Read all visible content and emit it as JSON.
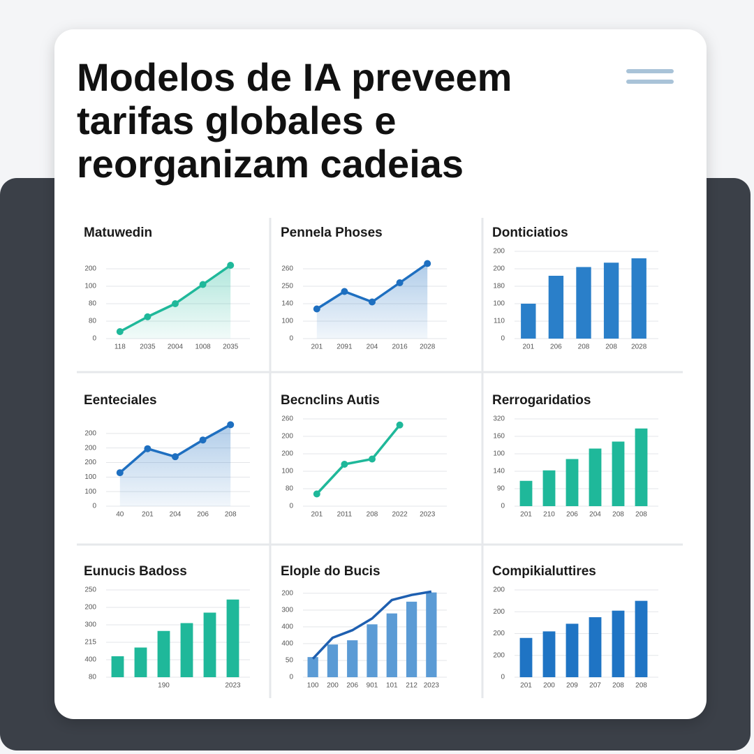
{
  "header": {
    "title": "Modelos de IA preveem tarifas globales e reorganizam cadeias"
  },
  "chart_data": [
    {
      "type": "line",
      "title": "Matuwedin",
      "area": true,
      "color": "#1fb89a",
      "categories": [
        "118",
        "2035",
        "2004",
        "1008",
        "2035"
      ],
      "values": [
        0.4,
        1.25,
        2.0,
        3.1,
        4.2
      ],
      "ylim": [
        0,
        5
      ],
      "yticks": [
        {
          "value": 0,
          "label": "0"
        },
        {
          "value": 1,
          "label": "80"
        },
        {
          "value": 2,
          "label": "80"
        },
        {
          "value": 3,
          "label": "100"
        },
        {
          "value": 4,
          "label": "200"
        }
      ]
    },
    {
      "type": "line",
      "title": "Pennela Phoses",
      "area": true,
      "color": "#1e6fc0",
      "categories": [
        "201",
        "2091",
        "204",
        "2016",
        "2028"
      ],
      "values": [
        1.7,
        2.7,
        2.1,
        3.2,
        4.3
      ],
      "ylim": [
        0,
        5
      ],
      "yticks": [
        {
          "value": 0,
          "label": "0"
        },
        {
          "value": 1,
          "label": "100"
        },
        {
          "value": 2,
          "label": "140"
        },
        {
          "value": 3,
          "label": "250"
        },
        {
          "value": 4,
          "label": "260"
        }
      ]
    },
    {
      "type": "bar",
      "title": "Donticiatios",
      "color": "#2a7fc9",
      "categories": [
        "201",
        "206",
        "208",
        "208",
        "2028"
      ],
      "values": [
        2.0,
        3.6,
        4.1,
        4.35,
        4.6
      ],
      "ylim": [
        0,
        5
      ],
      "yticks": [
        {
          "value": 0,
          "label": "0"
        },
        {
          "value": 1,
          "label": "110"
        },
        {
          "value": 2,
          "label": "100"
        },
        {
          "value": 3,
          "label": "180"
        },
        {
          "value": 4,
          "label": "200"
        },
        {
          "value": 5,
          "label": "200"
        }
      ]
    },
    {
      "type": "line",
      "title": "Eenteciales",
      "area": true,
      "color": "#1e6fc0",
      "categories": [
        "40",
        "201",
        "204",
        "206",
        "208"
      ],
      "values": [
        2.3,
        3.95,
        3.4,
        4.55,
        5.6
      ],
      "ylim": [
        0,
        6
      ],
      "yticks": [
        {
          "value": 0,
          "label": "0"
        },
        {
          "value": 1,
          "label": "100"
        },
        {
          "value": 2,
          "label": "100"
        },
        {
          "value": 3,
          "label": "200"
        },
        {
          "value": 4,
          "label": "200"
        },
        {
          "value": 5,
          "label": "200"
        }
      ]
    },
    {
      "type": "line",
      "title": "Becnclins Autis",
      "area": false,
      "color": "#1fb89a",
      "categories": [
        "201",
        "2011",
        "208",
        "2022",
        "2023"
      ],
      "values": [
        0.7,
        2.4,
        2.7,
        4.65,
        null
      ],
      "ylim": [
        0,
        5
      ],
      "yticks": [
        {
          "value": 0,
          "label": "0"
        },
        {
          "value": 1,
          "label": "80"
        },
        {
          "value": 2,
          "label": "100"
        },
        {
          "value": 3,
          "label": "200"
        },
        {
          "value": 4,
          "label": "200"
        },
        {
          "value": 5,
          "label": "260"
        }
      ]
    },
    {
      "type": "bar",
      "title": "Rerrogaridatios",
      "color": "#1fb89a",
      "categories": [
        "201",
        "210",
        "206",
        "204",
        "208",
        "208"
      ],
      "values": [
        1.45,
        2.05,
        2.7,
        3.3,
        3.7,
        4.45
      ],
      "ylim": [
        0,
        5
      ],
      "yticks": [
        {
          "value": 0,
          "label": "0"
        },
        {
          "value": 1,
          "label": "90"
        },
        {
          "value": 2,
          "label": "140"
        },
        {
          "value": 3,
          "label": "100"
        },
        {
          "value": 4,
          "label": "160"
        },
        {
          "value": 5,
          "label": "320"
        }
      ]
    },
    {
      "type": "bar",
      "title": "Eunucis Badoss",
      "color": "#1fb89a",
      "categories": [
        null,
        null,
        "190",
        null,
        null,
        "2023"
      ],
      "values": [
        1.2,
        1.7,
        2.65,
        3.1,
        3.7,
        4.45
      ],
      "ylim": [
        0,
        5
      ],
      "yticks": [
        {
          "value": 0,
          "label": "80"
        },
        {
          "value": 1,
          "label": "400"
        },
        {
          "value": 2,
          "label": "215"
        },
        {
          "value": 3,
          "label": "300"
        },
        {
          "value": 4,
          "label": "200"
        },
        {
          "value": 5,
          "label": "250"
        }
      ]
    },
    {
      "type": "bar",
      "title": "Elople do Bucis",
      "categories": [
        "100",
        "200",
        "206",
        "901",
        "101",
        "212",
        "2023"
      ],
      "series": [
        {
          "type": "bar",
          "color": "#5b9bd5",
          "values": [
            1.2,
            1.95,
            2.2,
            3.15,
            3.8,
            4.5,
            5.05
          ]
        },
        {
          "type": "line",
          "color": "#1e5fb0",
          "values": [
            1.1,
            2.35,
            2.8,
            3.5,
            4.6,
            4.9,
            5.1
          ]
        }
      ],
      "ylim": [
        0,
        5.2
      ],
      "yticks": [
        {
          "value": 0,
          "label": "0"
        },
        {
          "value": 1,
          "label": "50"
        },
        {
          "value": 2,
          "label": "400"
        },
        {
          "value": 3,
          "label": "400"
        },
        {
          "value": 4,
          "label": "300"
        },
        {
          "value": 5,
          "label": "200"
        }
      ]
    },
    {
      "type": "bar",
      "title": "Compikialuttires",
      "color": "#1f74c4",
      "categories": [
        "201",
        "200",
        "209",
        "207",
        "208",
        "208"
      ],
      "values": [
        1.8,
        2.1,
        2.45,
        2.75,
        3.05,
        3.5
      ],
      "ylim": [
        0,
        4
      ],
      "yticks": [
        {
          "value": 0,
          "label": "0"
        },
        {
          "value": 1,
          "label": "200"
        },
        {
          "value": 2,
          "label": "200"
        },
        {
          "value": 3,
          "label": "200"
        },
        {
          "value": 4,
          "label": "200"
        }
      ]
    }
  ]
}
